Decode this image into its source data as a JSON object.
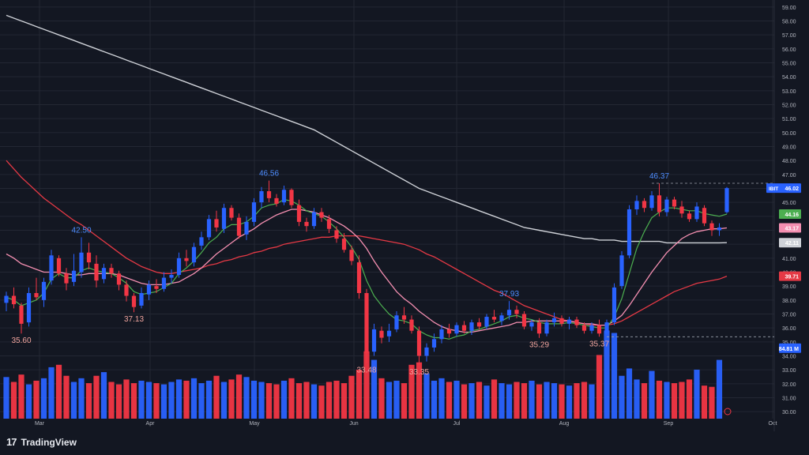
{
  "footer": {
    "brand": "TradingView",
    "logo_icon": "tradingview-logo-icon"
  },
  "colors": {
    "background": "#131722",
    "grid": "#232733",
    "up": "#2962ff",
    "down": "#f23645",
    "ma_fast": "#4caf50",
    "ma_mid": "#f48fb1",
    "ma_slow": "#e53945",
    "ma_long": "#cfd2d8",
    "label_up": "#4d8dff",
    "label_down": "#f0a49e"
  },
  "chart_data": {
    "type": "candlestick",
    "ticker": "IBIT",
    "x_labels": [
      "Mar",
      "Apr",
      "May",
      "Jun",
      "Jul",
      "Aug",
      "Sep",
      "Oct"
    ],
    "y_ticks": [
      "30.00",
      "31.00",
      "32.00",
      "33.00",
      "34.00",
      "35.00",
      "36.00",
      "37.00",
      "38.00",
      "39.00",
      "40.00",
      "41.00",
      "42.00",
      "43.00",
      "44.00",
      "45.00",
      "46.00",
      "47.00",
      "48.00",
      "49.00",
      "50.00",
      "51.00",
      "52.00",
      "53.00",
      "54.00",
      "55.00",
      "56.00",
      "57.00",
      "58.00",
      "59.00"
    ],
    "ylim": [
      29.5,
      59.5
    ],
    "grid": true,
    "price_labels": [
      {
        "text": "IBIT",
        "value": "46.02",
        "price": 46.02,
        "color": "#2962ff"
      },
      {
        "text": "",
        "value": "44.16",
        "price": 44.16,
        "color": "#4caf50"
      },
      {
        "text": "",
        "value": "43.17",
        "price": 43.17,
        "color": "#f48fb1"
      },
      {
        "text": "",
        "value": "42.11",
        "price": 42.11,
        "color": "#cfd2d8"
      },
      {
        "text": "",
        "value": "39.71",
        "price": 39.71,
        "color": "#e53945"
      },
      {
        "text": "",
        "value": "84.81 M",
        "price": 34.55,
        "color": "#2962ff"
      }
    ],
    "annotations": [
      {
        "text": "35.60",
        "index": 2,
        "price": 35.6,
        "kind": "low"
      },
      {
        "text": "42.50",
        "index": 10,
        "price": 42.5,
        "kind": "high"
      },
      {
        "text": "37.13",
        "index": 17,
        "price": 37.13,
        "kind": "low"
      },
      {
        "text": "46.56",
        "index": 35,
        "price": 46.56,
        "kind": "high"
      },
      {
        "text": "33.48",
        "index": 48,
        "price": 33.48,
        "kind": "low"
      },
      {
        "text": "33.35",
        "index": 55,
        "price": 33.35,
        "kind": "low"
      },
      {
        "text": "37.93",
        "index": 67,
        "price": 37.93,
        "kind": "high"
      },
      {
        "text": "35.29",
        "index": 71,
        "price": 35.29,
        "kind": "low"
      },
      {
        "text": "35.37",
        "index": 79,
        "price": 35.37,
        "kind": "low"
      },
      {
        "text": "46.37",
        "index": 87,
        "price": 46.37,
        "kind": "high"
      }
    ],
    "dashed_levels": [
      46.37,
      35.37
    ],
    "candles": [
      {
        "o": 37.8,
        "h": 38.6,
        "l": 37.2,
        "c": 38.3
      },
      {
        "o": 38.3,
        "h": 38.9,
        "l": 37.4,
        "c": 37.7
      },
      {
        "o": 37.6,
        "h": 37.8,
        "l": 35.6,
        "c": 36.3
      },
      {
        "o": 36.4,
        "h": 38.9,
        "l": 36.1,
        "c": 38.5
      },
      {
        "o": 38.5,
        "h": 39.6,
        "l": 38.0,
        "c": 38.2
      },
      {
        "o": 38.0,
        "h": 39.6,
        "l": 37.5,
        "c": 39.3
      },
      {
        "o": 39.4,
        "h": 41.6,
        "l": 39.1,
        "c": 41.2
      },
      {
        "o": 41.0,
        "h": 41.2,
        "l": 39.7,
        "c": 39.9
      },
      {
        "o": 39.9,
        "h": 40.3,
        "l": 38.7,
        "c": 39.2
      },
      {
        "o": 39.3,
        "h": 41.3,
        "l": 39.0,
        "c": 40.1
      },
      {
        "o": 40.0,
        "h": 42.5,
        "l": 39.6,
        "c": 41.4
      },
      {
        "o": 41.4,
        "h": 42.1,
        "l": 40.2,
        "c": 40.7
      },
      {
        "o": 40.6,
        "h": 41.2,
        "l": 38.9,
        "c": 39.4
      },
      {
        "o": 39.5,
        "h": 40.6,
        "l": 39.2,
        "c": 40.3
      },
      {
        "o": 40.3,
        "h": 40.6,
        "l": 39.6,
        "c": 39.9
      },
      {
        "o": 39.9,
        "h": 40.1,
        "l": 38.7,
        "c": 39.1
      },
      {
        "o": 39.1,
        "h": 39.4,
        "l": 37.9,
        "c": 38.3
      },
      {
        "o": 38.3,
        "h": 38.5,
        "l": 37.13,
        "c": 37.5
      },
      {
        "o": 37.6,
        "h": 38.9,
        "l": 37.4,
        "c": 38.5
      },
      {
        "o": 38.4,
        "h": 39.4,
        "l": 38.0,
        "c": 39.1
      },
      {
        "o": 39.0,
        "h": 39.5,
        "l": 38.5,
        "c": 38.8
      },
      {
        "o": 38.8,
        "h": 40.0,
        "l": 38.6,
        "c": 39.6
      },
      {
        "o": 39.6,
        "h": 40.2,
        "l": 39.2,
        "c": 39.8
      },
      {
        "o": 39.8,
        "h": 41.4,
        "l": 39.6,
        "c": 41.0
      },
      {
        "o": 41.0,
        "h": 41.6,
        "l": 40.4,
        "c": 40.8
      },
      {
        "o": 40.7,
        "h": 42.1,
        "l": 40.4,
        "c": 41.8
      },
      {
        "o": 41.9,
        "h": 42.9,
        "l": 41.6,
        "c": 42.5
      },
      {
        "o": 42.5,
        "h": 44.1,
        "l": 42.3,
        "c": 43.8
      },
      {
        "o": 43.8,
        "h": 44.4,
        "l": 42.9,
        "c": 43.2
      },
      {
        "o": 43.1,
        "h": 44.9,
        "l": 42.8,
        "c": 44.6
      },
      {
        "o": 44.6,
        "h": 44.8,
        "l": 43.7,
        "c": 43.9
      },
      {
        "o": 43.9,
        "h": 44.2,
        "l": 42.4,
        "c": 42.6
      },
      {
        "o": 42.7,
        "h": 44.0,
        "l": 42.3,
        "c": 43.6
      },
      {
        "o": 43.6,
        "h": 45.3,
        "l": 43.3,
        "c": 45.0
      },
      {
        "o": 45.0,
        "h": 46.1,
        "l": 44.6,
        "c": 45.8
      },
      {
        "o": 45.8,
        "h": 46.56,
        "l": 45.0,
        "c": 45.3
      },
      {
        "o": 45.3,
        "h": 45.6,
        "l": 44.7,
        "c": 44.9
      },
      {
        "o": 45.0,
        "h": 46.2,
        "l": 44.8,
        "c": 45.9
      },
      {
        "o": 45.9,
        "h": 46.0,
        "l": 44.6,
        "c": 44.8
      },
      {
        "o": 44.8,
        "h": 45.2,
        "l": 43.3,
        "c": 43.6
      },
      {
        "o": 43.6,
        "h": 43.9,
        "l": 42.9,
        "c": 43.3
      },
      {
        "o": 43.3,
        "h": 44.6,
        "l": 43.1,
        "c": 44.3
      },
      {
        "o": 44.3,
        "h": 44.6,
        "l": 43.6,
        "c": 43.9
      },
      {
        "o": 43.8,
        "h": 44.1,
        "l": 42.8,
        "c": 43.1
      },
      {
        "o": 43.0,
        "h": 43.3,
        "l": 42.1,
        "c": 42.4
      },
      {
        "o": 42.4,
        "h": 42.8,
        "l": 41.4,
        "c": 41.6
      },
      {
        "o": 41.6,
        "h": 41.9,
        "l": 40.5,
        "c": 40.8
      },
      {
        "o": 40.7,
        "h": 41.2,
        "l": 38.1,
        "c": 38.5
      },
      {
        "o": 38.5,
        "h": 38.8,
        "l": 33.48,
        "c": 34.2
      },
      {
        "o": 34.3,
        "h": 36.3,
        "l": 34.0,
        "c": 35.9
      },
      {
        "o": 35.8,
        "h": 36.1,
        "l": 34.9,
        "c": 35.3
      },
      {
        "o": 35.4,
        "h": 36.3,
        "l": 35.0,
        "c": 35.8
      },
      {
        "o": 35.9,
        "h": 37.2,
        "l": 35.7,
        "c": 36.9
      },
      {
        "o": 36.9,
        "h": 37.5,
        "l": 36.3,
        "c": 36.6
      },
      {
        "o": 36.6,
        "h": 36.9,
        "l": 35.6,
        "c": 35.8
      },
      {
        "o": 35.8,
        "h": 36.1,
        "l": 33.35,
        "c": 34.0
      },
      {
        "o": 34.0,
        "h": 34.9,
        "l": 33.6,
        "c": 34.6
      },
      {
        "o": 34.6,
        "h": 35.6,
        "l": 34.3,
        "c": 35.2
      },
      {
        "o": 35.2,
        "h": 36.2,
        "l": 34.9,
        "c": 35.9
      },
      {
        "o": 35.9,
        "h": 36.3,
        "l": 35.3,
        "c": 35.6
      },
      {
        "o": 35.6,
        "h": 36.4,
        "l": 35.4,
        "c": 36.2
      },
      {
        "o": 36.2,
        "h": 36.5,
        "l": 35.6,
        "c": 35.8
      },
      {
        "o": 35.8,
        "h": 36.6,
        "l": 35.5,
        "c": 36.4
      },
      {
        "o": 36.4,
        "h": 36.7,
        "l": 35.9,
        "c": 36.1
      },
      {
        "o": 36.1,
        "h": 37.0,
        "l": 35.9,
        "c": 36.8
      },
      {
        "o": 36.8,
        "h": 37.3,
        "l": 36.4,
        "c": 36.6
      },
      {
        "o": 36.5,
        "h": 37.1,
        "l": 36.2,
        "c": 36.9
      },
      {
        "o": 36.9,
        "h": 37.93,
        "l": 36.6,
        "c": 37.3
      },
      {
        "o": 37.3,
        "h": 37.6,
        "l": 36.7,
        "c": 37.0
      },
      {
        "o": 37.0,
        "h": 37.2,
        "l": 35.9,
        "c": 36.1
      },
      {
        "o": 36.1,
        "h": 36.6,
        "l": 35.8,
        "c": 36.4
      },
      {
        "o": 36.4,
        "h": 36.7,
        "l": 35.29,
        "c": 35.6
      },
      {
        "o": 35.6,
        "h": 36.6,
        "l": 35.4,
        "c": 36.4
      },
      {
        "o": 36.4,
        "h": 37.1,
        "l": 36.1,
        "c": 36.7
      },
      {
        "o": 36.7,
        "h": 36.9,
        "l": 36.1,
        "c": 36.3
      },
      {
        "o": 36.3,
        "h": 36.8,
        "l": 35.9,
        "c": 36.6
      },
      {
        "o": 36.6,
        "h": 36.8,
        "l": 36.0,
        "c": 36.2
      },
      {
        "o": 36.2,
        "h": 36.4,
        "l": 35.6,
        "c": 35.8
      },
      {
        "o": 35.8,
        "h": 36.4,
        "l": 35.6,
        "c": 36.2
      },
      {
        "o": 36.2,
        "h": 36.6,
        "l": 35.37,
        "c": 35.6
      },
      {
        "o": 35.6,
        "h": 36.6,
        "l": 35.5,
        "c": 36.4
      },
      {
        "o": 36.4,
        "h": 39.2,
        "l": 36.2,
        "c": 38.9
      },
      {
        "o": 39.0,
        "h": 41.5,
        "l": 38.8,
        "c": 41.2
      },
      {
        "o": 41.2,
        "h": 44.8,
        "l": 41.0,
        "c": 44.5
      },
      {
        "o": 44.5,
        "h": 45.5,
        "l": 44.1,
        "c": 45.1
      },
      {
        "o": 45.1,
        "h": 45.3,
        "l": 44.3,
        "c": 44.6
      },
      {
        "o": 44.6,
        "h": 45.8,
        "l": 44.4,
        "c": 45.5
      },
      {
        "o": 45.5,
        "h": 46.37,
        "l": 44.0,
        "c": 44.3
      },
      {
        "o": 44.3,
        "h": 45.4,
        "l": 44.0,
        "c": 45.2
      },
      {
        "o": 45.2,
        "h": 45.4,
        "l": 44.5,
        "c": 44.7
      },
      {
        "o": 44.7,
        "h": 45.1,
        "l": 43.9,
        "c": 44.2
      },
      {
        "o": 44.2,
        "h": 44.4,
        "l": 43.6,
        "c": 43.8
      },
      {
        "o": 43.8,
        "h": 45.0,
        "l": 43.6,
        "c": 44.7
      },
      {
        "o": 44.6,
        "h": 44.8,
        "l": 43.3,
        "c": 43.5
      },
      {
        "o": 43.5,
        "h": 43.7,
        "l": 42.6,
        "c": 43.0
      },
      {
        "o": 43.0,
        "h": 43.5,
        "l": 42.6,
        "c": 43.2
      },
      {
        "o": 44.3,
        "h": 46.1,
        "l": 44.2,
        "c": 46.02
      }
    ],
    "volume": [
      34,
      30,
      36,
      28,
      31,
      33,
      42,
      44,
      35,
      30,
      33,
      29,
      35,
      38,
      30,
      28,
      32,
      29,
      31,
      30,
      29,
      28,
      30,
      32,
      31,
      33,
      29,
      31,
      35,
      30,
      32,
      36,
      34,
      31,
      30,
      29,
      28,
      31,
      33,
      29,
      30,
      28,
      27,
      30,
      31,
      29,
      35,
      40,
      55,
      48,
      33,
      30,
      31,
      29,
      44,
      46,
      37,
      31,
      33,
      30,
      31,
      28,
      29,
      30,
      27,
      32,
      29,
      28,
      30,
      29,
      31,
      28,
      30,
      29,
      28,
      27,
      29,
      30,
      28,
      52,
      72,
      70,
      35,
      41,
      32,
      29,
      39,
      31,
      30,
      29,
      30,
      32,
      40,
      27,
      26,
      48
    ],
    "ma_fast": [
      38.2,
      38.0,
      37.6,
      37.8,
      38.0,
      38.5,
      39.5,
      39.9,
      39.6,
      39.6,
      40.1,
      40.3,
      40.1,
      40.0,
      39.9,
      39.6,
      39.2,
      38.6,
      38.4,
      38.5,
      38.6,
      38.9,
      39.2,
      39.9,
      40.3,
      40.8,
      41.4,
      42.1,
      42.5,
      43.1,
      43.4,
      43.4,
      43.6,
      44.0,
      44.6,
      44.8,
      44.9,
      45.2,
      45.1,
      44.8,
      44.4,
      44.2,
      44.0,
      43.6,
      43.1,
      42.5,
      41.8,
      40.9,
      39.4,
      38.3,
      37.6,
      37.0,
      36.6,
      36.5,
      36.3,
      35.8,
      35.5,
      35.3,
      35.3,
      35.2,
      35.4,
      35.5,
      35.8,
      35.9,
      36.1,
      36.3,
      36.5,
      36.8,
      36.9,
      36.7,
      36.6,
      36.4,
      36.3,
      36.3,
      36.3,
      36.4,
      36.3,
      36.2,
      36.1,
      36.0,
      36.0,
      36.8,
      38.1,
      39.9,
      41.7,
      42.9,
      43.9,
      44.3,
      44.6,
      44.6,
      44.5,
      44.4,
      44.4,
      44.2,
      44.1,
      44.0,
      44.16
    ],
    "ma_mid": [
      41.3,
      41.0,
      40.6,
      40.4,
      40.2,
      40.0,
      40.0,
      40.0,
      39.9,
      39.8,
      39.8,
      39.9,
      39.9,
      39.9,
      39.9,
      39.8,
      39.6,
      39.4,
      39.2,
      39.1,
      39.1,
      39.1,
      39.2,
      39.3,
      39.6,
      39.9,
      40.3,
      40.8,
      41.3,
      41.7,
      42.1,
      42.5,
      42.8,
      43.1,
      43.5,
      43.8,
      44.1,
      44.3,
      44.5,
      44.5,
      44.4,
      44.3,
      44.1,
      43.9,
      43.6,
      43.3,
      42.9,
      42.4,
      41.7,
      40.8,
      40.0,
      39.3,
      38.6,
      38.1,
      37.7,
      37.2,
      36.8,
      36.4,
      36.1,
      35.9,
      35.8,
      35.7,
      35.7,
      35.8,
      35.9,
      36.0,
      36.1,
      36.2,
      36.4,
      36.4,
      36.5,
      36.5,
      36.5,
      36.5,
      36.5,
      36.5,
      36.4,
      36.3,
      36.3,
      36.2,
      36.2,
      36.5,
      36.9,
      37.6,
      38.4,
      39.2,
      40.0,
      40.7,
      41.4,
      41.9,
      42.4,
      42.7,
      42.9,
      43.0,
      43.1,
      43.1,
      43.17
    ],
    "ma_slow": [
      48.0,
      47.4,
      46.8,
      46.3,
      45.8,
      45.3,
      44.9,
      44.5,
      44.1,
      43.7,
      43.4,
      43.0,
      42.6,
      42.2,
      41.8,
      41.4,
      41.0,
      40.7,
      40.4,
      40.2,
      40.0,
      39.9,
      39.9,
      40.0,
      40.1,
      40.2,
      40.3,
      40.5,
      40.6,
      40.8,
      40.9,
      41.1,
      41.2,
      41.4,
      41.5,
      41.7,
      41.8,
      42.0,
      42.1,
      42.2,
      42.3,
      42.4,
      42.5,
      42.5,
      42.6,
      42.6,
      42.6,
      42.6,
      42.5,
      42.4,
      42.3,
      42.2,
      42.1,
      42.0,
      41.8,
      41.6,
      41.3,
      41.1,
      40.8,
      40.5,
      40.2,
      39.9,
      39.6,
      39.3,
      39.0,
      38.7,
      38.5,
      38.2,
      37.9,
      37.6,
      37.4,
      37.2,
      37.0,
      36.8,
      36.6,
      36.5,
      36.4,
      36.3,
      36.2,
      36.2,
      36.2,
      36.3,
      36.5,
      36.8,
      37.1,
      37.4,
      37.7,
      38.0,
      38.3,
      38.6,
      38.8,
      39.0,
      39.2,
      39.3,
      39.4,
      39.5,
      39.71
    ],
    "ma_long": [
      58.4,
      58.2,
      58.0,
      57.8,
      57.6,
      57.4,
      57.2,
      57.0,
      56.8,
      56.6,
      56.4,
      56.2,
      56.0,
      55.8,
      55.6,
      55.4,
      55.2,
      55.0,
      54.8,
      54.6,
      54.4,
      54.2,
      54.0,
      53.8,
      53.6,
      53.4,
      53.2,
      53.0,
      52.8,
      52.6,
      52.4,
      52.2,
      52.0,
      51.8,
      51.6,
      51.4,
      51.2,
      51.0,
      50.8,
      50.6,
      50.4,
      50.2,
      49.9,
      49.6,
      49.3,
      49.0,
      48.7,
      48.4,
      48.1,
      47.8,
      47.5,
      47.2,
      46.9,
      46.6,
      46.3,
      46.0,
      45.8,
      45.6,
      45.4,
      45.2,
      45.0,
      44.8,
      44.6,
      44.4,
      44.2,
      44.0,
      43.8,
      43.6,
      43.4,
      43.2,
      43.1,
      43.0,
      42.9,
      42.8,
      42.7,
      42.6,
      42.5,
      42.4,
      42.4,
      42.3,
      42.3,
      42.3,
      42.2,
      42.2,
      42.2,
      42.2,
      42.2,
      42.2,
      42.1,
      42.1,
      42.1,
      42.1,
      42.1,
      42.1,
      42.1,
      42.1,
      42.11
    ]
  }
}
